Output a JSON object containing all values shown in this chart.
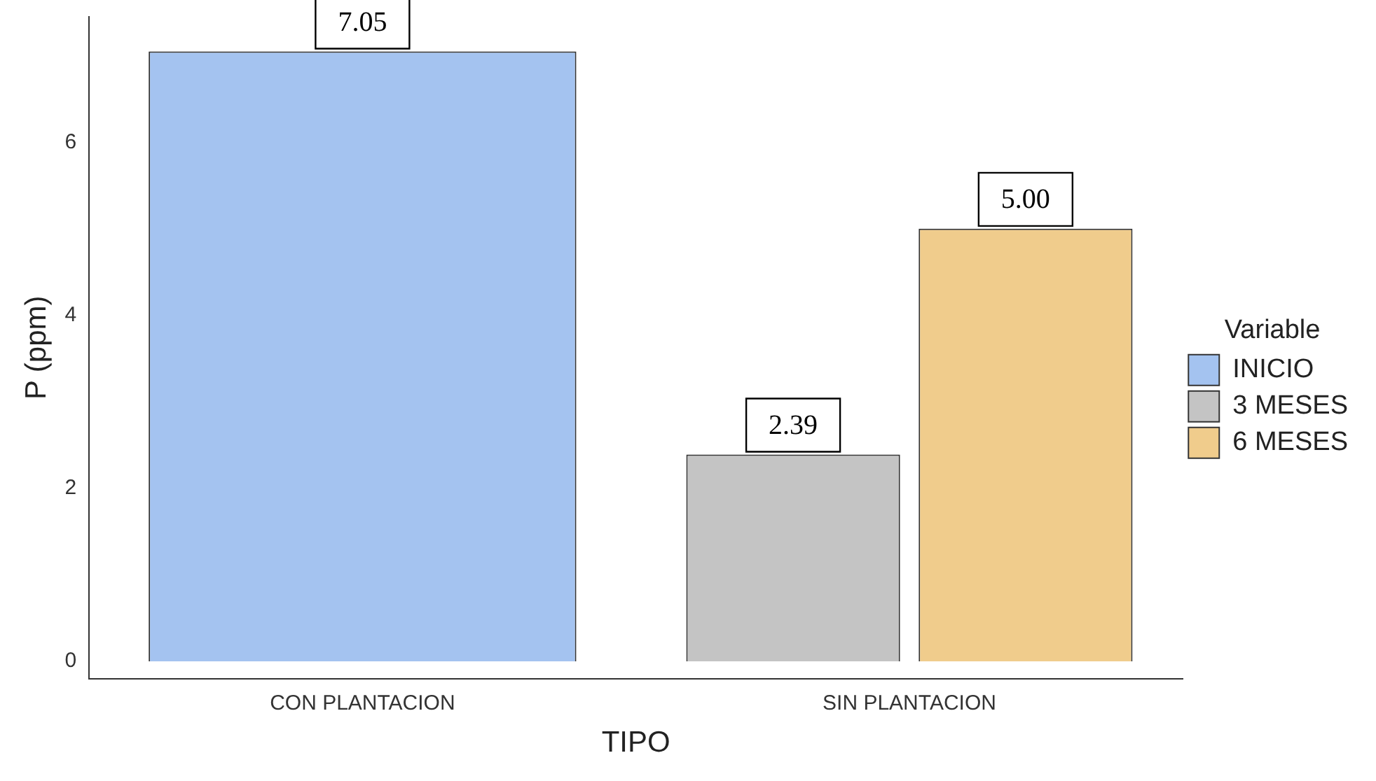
{
  "chart_data": {
    "type": "bar",
    "xlabel": "TIPO",
    "ylabel": "P (ppm)",
    "legend_title": "Variable",
    "legend": "right",
    "grid": false,
    "categories": [
      "CON PLANTACION",
      "SIN PLANTACION"
    ],
    "ylim": [
      -0.2,
      7.45
    ],
    "yticks": [
      0,
      2,
      4,
      6
    ],
    "series": [
      {
        "name": "INICIO",
        "color": "#a4c3f0",
        "values": [
          7.05,
          null
        ],
        "value_labels": [
          "7.05",
          null
        ]
      },
      {
        "name": "3 MESES",
        "color": "#c4c4c4",
        "values": [
          null,
          2.39
        ],
        "value_labels": [
          null,
          "2.39"
        ]
      },
      {
        "name": "6 MESES",
        "color": "#f0cc8c",
        "values": [
          null,
          5.0
        ],
        "value_labels": [
          null,
          "5.00"
        ]
      }
    ]
  }
}
